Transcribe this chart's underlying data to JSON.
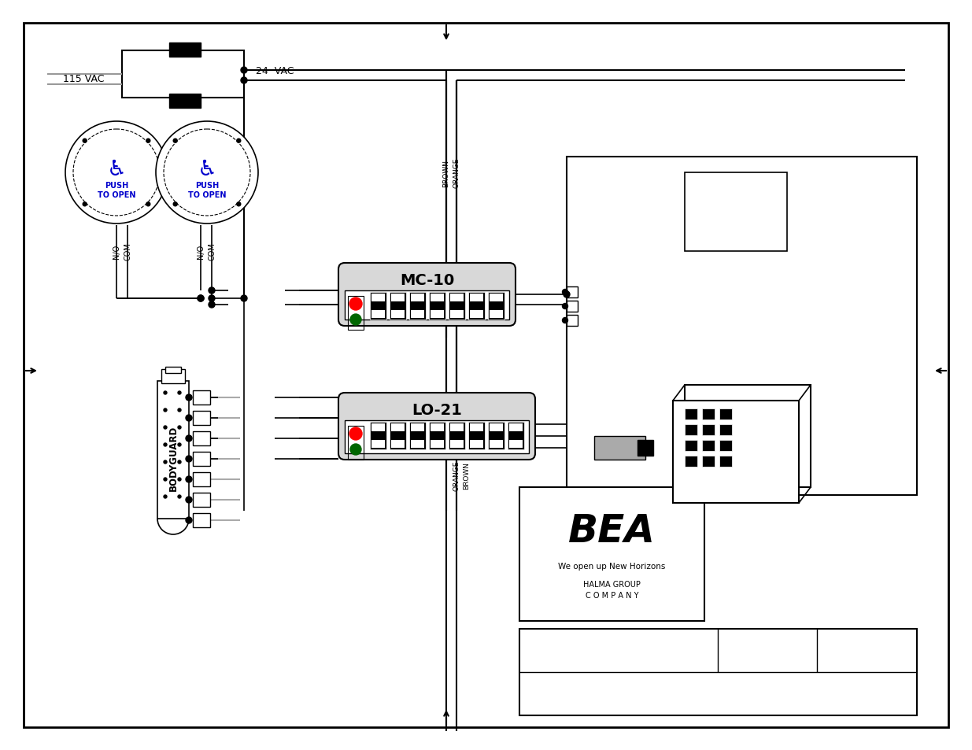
{
  "bg_color": "#ffffff",
  "blue_color": "#0000cc",
  "transformer_label_left": "115 VAC",
  "transformer_label_right": "24  VAC",
  "mc10_label": "MC-10",
  "lo21_label": "LO-21",
  "bodyguard_label": "BODYGUARD",
  "brown_label": "BROWN",
  "orange_label": "ORANGE",
  "push_to_open": "PUSH\nTO OPEN",
  "no_label": "N/O",
  "com_label": "COM",
  "bea_text": "BEA",
  "bea_subtitle": "We open up New Horizons",
  "halma_text": "HALMA GROUP\nC O M P A N Y",
  "fig_width": 12.35,
  "fig_height": 9.54
}
